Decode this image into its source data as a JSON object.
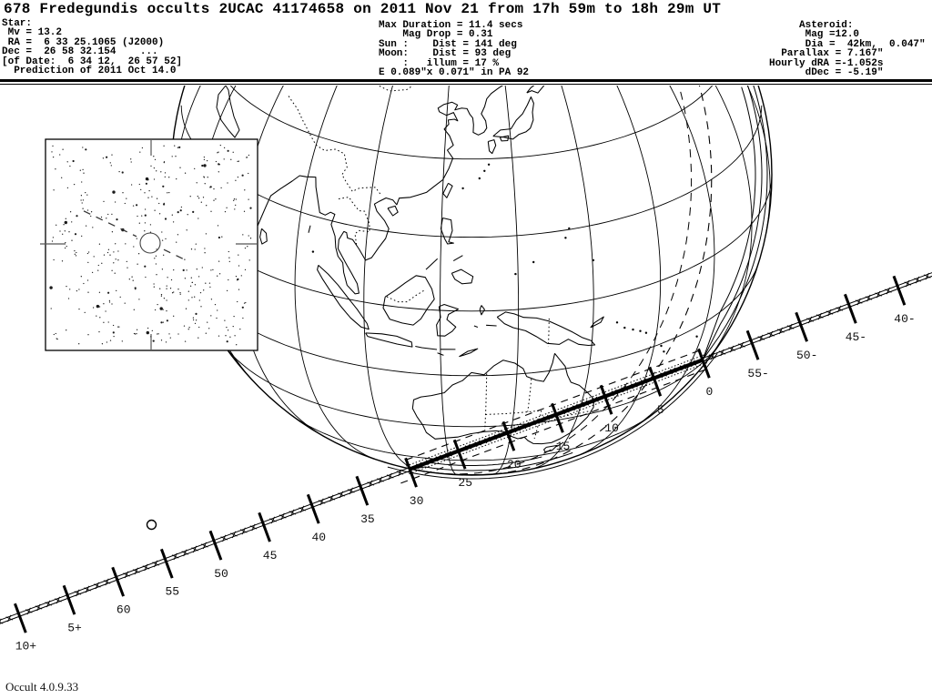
{
  "title": "678 Fredegundis occults 2UCAC 41174658 on 2011 Nov 21 from 17h 59m to 18h 29m UT",
  "header": {
    "star_block": "Star:\n Mv = 13.2\n RA =  6 33 25.1065 (J2000)\nDec =  26 58 32.154    ...\n[of Date:  6 34 12,  26 57 52]\n  Prediction of 2011 Oct 14.0",
    "event_block": "Max Duration = 11.4 secs\n    Mag Drop = 0.31\nSun :    Dist = 141 deg\nMoon:    Dist = 93 deg\n    :   illum = 17 %\nE 0.089\"x 0.071\" in PA 92",
    "asteroid_block": "     Asteroid:\n      Mag =12.0\n      Dia =  42km,  0.047\"\n  Parallax = 7.167\"\nHourly dRA =-1.052s\n      dDec = -5.19\""
  },
  "map": {
    "path_tick_labels": [
      {
        "t": -20,
        "label": "40-"
      },
      {
        "t": -15,
        "label": "45-"
      },
      {
        "t": -10,
        "label": "50-"
      },
      {
        "t": -5,
        "label": "55-"
      },
      {
        "t": 0,
        "label": "0"
      },
      {
        "t": 5,
        "label": "5"
      },
      {
        "t": 10,
        "label": "10"
      },
      {
        "t": 15,
        "label": "15"
      },
      {
        "t": 20,
        "label": "20"
      },
      {
        "t": 25,
        "label": "25"
      },
      {
        "t": 30,
        "label": "30"
      },
      {
        "t": 35,
        "label": "35"
      },
      {
        "t": 40,
        "label": "40"
      },
      {
        "t": 45,
        "label": "45"
      },
      {
        "t": 50,
        "label": "50"
      },
      {
        "t": 55,
        "label": "55"
      },
      {
        "t": 60,
        "label": "60"
      },
      {
        "t": 65,
        "label": "5+"
      },
      {
        "t": 70,
        "label": "10+"
      }
    ]
  },
  "footer": {
    "version": "Occult 4.0.9.33"
  },
  "colors": {
    "ink": "#000000",
    "background": "#ffffff"
  }
}
